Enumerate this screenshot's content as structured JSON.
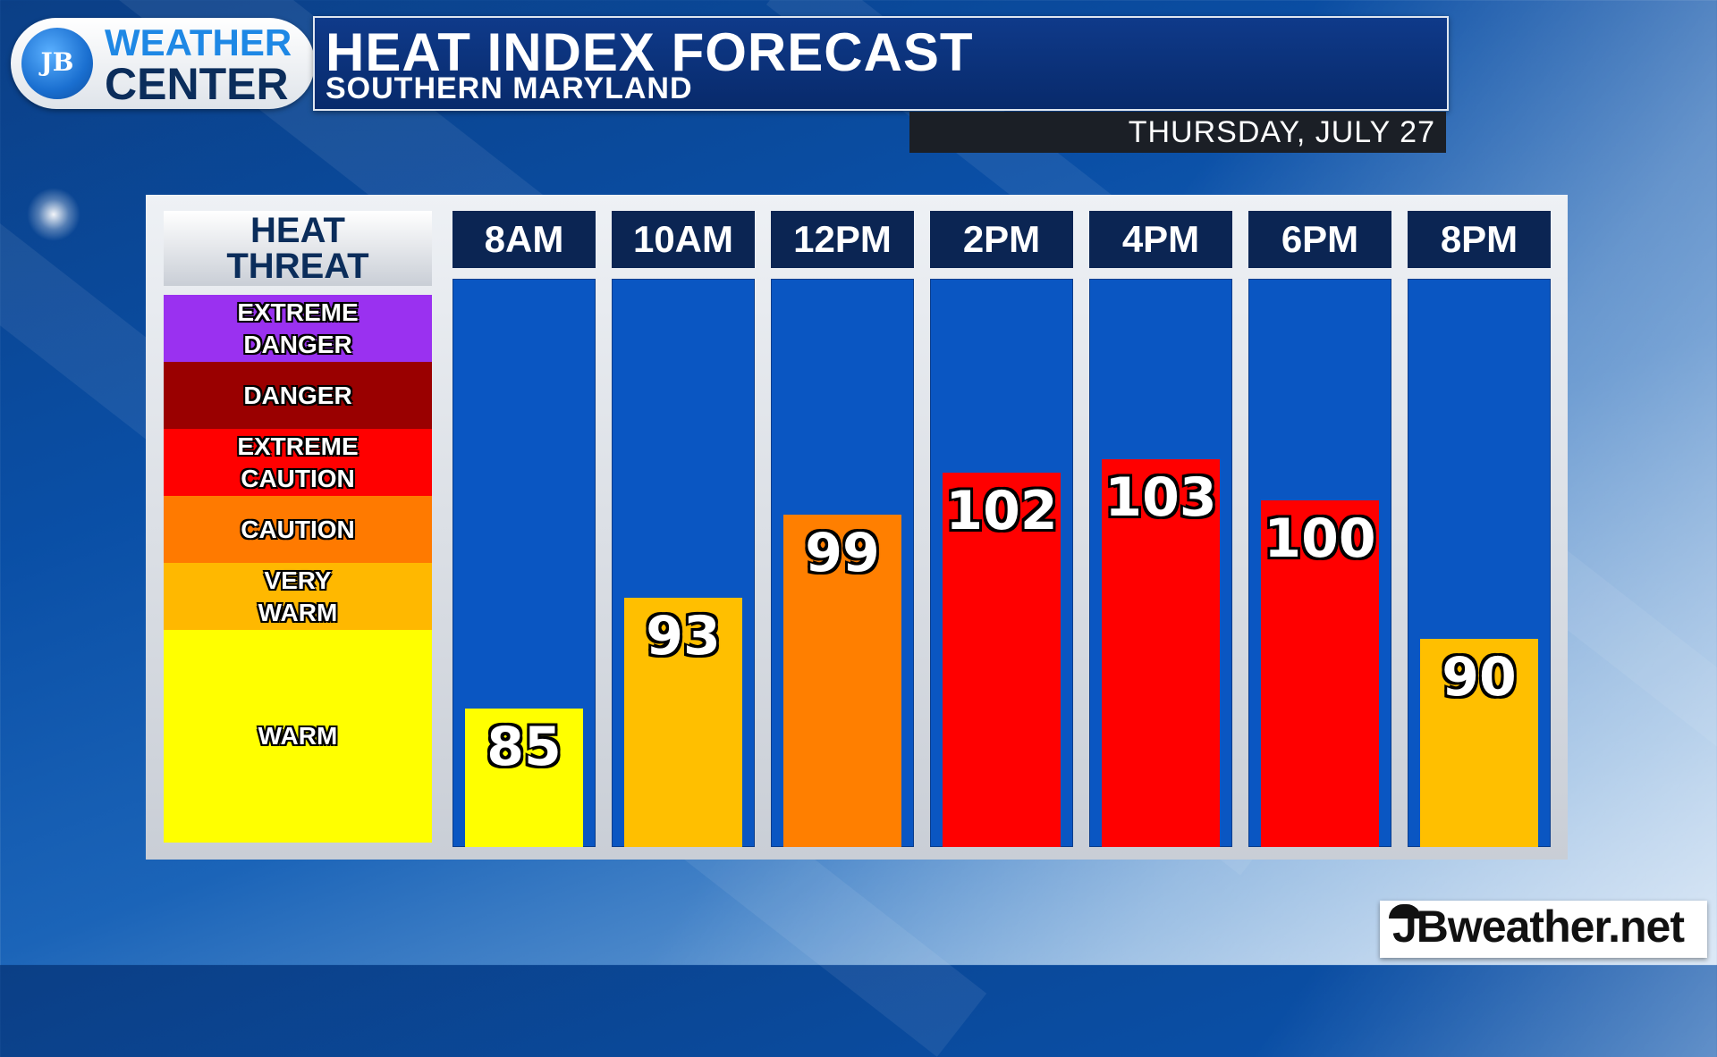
{
  "header": {
    "logo_line1": "WEATHER",
    "logo_line2": "CENTER",
    "logo_mark": "JB",
    "title": "HEAT INDEX FORECAST",
    "subtitle": "SOUTHERN MARYLAND",
    "date": "THURSDAY, JULY 27"
  },
  "legend": {
    "heading_line1": "HEAT",
    "heading_line2": "THREAT",
    "bands": [
      {
        "line1": "EXTREME",
        "line2": "DANGER",
        "color": "#9a31f0"
      },
      {
        "line1": "DANGER",
        "line2": "",
        "color": "#9a0000"
      },
      {
        "line1": "EXTREME",
        "line2": "CAUTION",
        "color": "#ff0000"
      },
      {
        "line1": "CAUTION",
        "line2": "",
        "color": "#ff7a00"
      },
      {
        "line1": "VERY",
        "line2": "WARM",
        "color": "#ffb800"
      },
      {
        "line1": "WARM",
        "line2": "",
        "color": "#ffff00"
      }
    ]
  },
  "chart_data": {
    "type": "bar",
    "title": "HEAT INDEX FORECAST",
    "subtitle": "SOUTHERN MARYLAND",
    "categories": [
      "8AM",
      "10AM",
      "12PM",
      "2PM",
      "4PM",
      "6PM",
      "8PM"
    ],
    "values": [
      85,
      93,
      99,
      102,
      103,
      100,
      90
    ],
    "bar_colors": [
      "#ffff00",
      "#ffbf00",
      "#ff7f00",
      "#ff0000",
      "#ff0000",
      "#ff0000",
      "#ffbf00"
    ],
    "ylim": [
      75,
      116
    ],
    "grid": false,
    "column_background": "#0a56c2"
  },
  "brand": {
    "text": "JBweather.net"
  }
}
